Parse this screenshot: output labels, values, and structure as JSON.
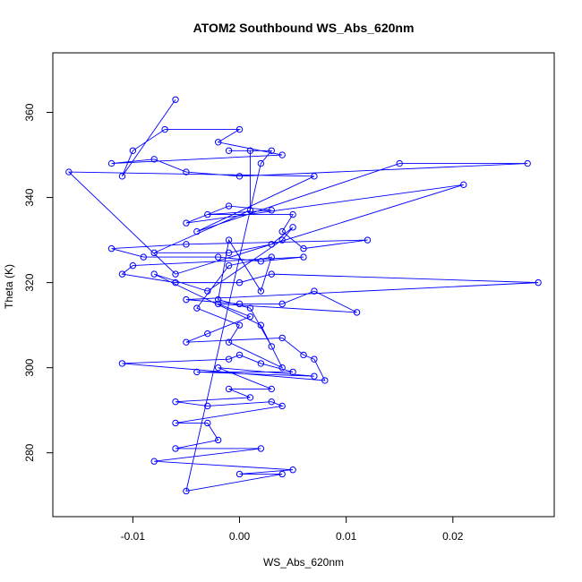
{
  "chart_data": {
    "type": "line",
    "title": "ATOM2 Southbound WS_Abs_620nm",
    "xlabel": "WS_Abs_620nm",
    "ylabel": "Theta (K)",
    "xlim": [
      -0.0175,
      0.0295
    ],
    "ylim": [
      265,
      374
    ],
    "xticks": [
      -0.01,
      0.0,
      0.01,
      0.02
    ],
    "xtick_labels": [
      "-0.01",
      "0.00",
      "0.01",
      "0.02"
    ],
    "yticks": [
      280,
      300,
      320,
      340,
      360
    ],
    "ytick_labels": [
      "280",
      "300",
      "320",
      "340",
      "360"
    ],
    "grid": false,
    "legend": "none",
    "series_color": "#0000ff",
    "marker": "open-circle",
    "points": [
      {
        "x": -0.006,
        "y": 363
      },
      {
        "x": -0.011,
        "y": 345
      },
      {
        "x": -0.01,
        "y": 351
      },
      {
        "x": -0.007,
        "y": 356
      },
      {
        "x": 0.0,
        "y": 356
      },
      {
        "x": -0.002,
        "y": 353
      },
      {
        "x": 0.004,
        "y": 350
      },
      {
        "x": -0.012,
        "y": 348
      },
      {
        "x": -0.008,
        "y": 349
      },
      {
        "x": -0.005,
        "y": 346
      },
      {
        "x": 0.0,
        "y": 345
      },
      {
        "x": 0.027,
        "y": 348
      },
      {
        "x": 0.015,
        "y": 348
      },
      {
        "x": -0.004,
        "y": 332
      },
      {
        "x": 0.007,
        "y": 345
      },
      {
        "x": -0.016,
        "y": 346
      },
      {
        "x": -0.006,
        "y": 322
      },
      {
        "x": 0.021,
        "y": 343
      },
      {
        "x": -0.005,
        "y": 334
      },
      {
        "x": -0.001,
        "y": 338
      },
      {
        "x": 0.003,
        "y": 337
      },
      {
        "x": -0.003,
        "y": 336
      },
      {
        "x": 0.005,
        "y": 336
      },
      {
        "x": 0.004,
        "y": 332
      },
      {
        "x": 0.006,
        "y": 328
      },
      {
        "x": 0.012,
        "y": 330
      },
      {
        "x": -0.005,
        "y": 329
      },
      {
        "x": -0.012,
        "y": 328
      },
      {
        "x": -0.009,
        "y": 326
      },
      {
        "x": -0.002,
        "y": 326
      },
      {
        "x": 0.002,
        "y": 325
      },
      {
        "x": 0.006,
        "y": 326
      },
      {
        "x": -0.01,
        "y": 324
      },
      {
        "x": -0.011,
        "y": 322
      },
      {
        "x": -0.006,
        "y": 320
      },
      {
        "x": 0.0,
        "y": 320
      },
      {
        "x": 0.003,
        "y": 322
      },
      {
        "x": 0.028,
        "y": 320
      },
      {
        "x": -0.005,
        "y": 316
      },
      {
        "x": 0.0,
        "y": 315
      },
      {
        "x": 0.004,
        "y": 315
      },
      {
        "x": 0.007,
        "y": 318
      },
      {
        "x": 0.011,
        "y": 313
      },
      {
        "x": -0.002,
        "y": 315
      },
      {
        "x": 0.001,
        "y": 312
      },
      {
        "x": -0.003,
        "y": 308
      },
      {
        "x": -0.005,
        "y": 306
      },
      {
        "x": 0.004,
        "y": 307
      },
      {
        "x": 0.006,
        "y": 303
      },
      {
        "x": 0.007,
        "y": 302
      },
      {
        "x": 0.008,
        "y": 297
      },
      {
        "x": -0.011,
        "y": 301
      },
      {
        "x": -0.001,
        "y": 302
      },
      {
        "x": 0.0,
        "y": 303
      },
      {
        "x": 0.002,
        "y": 301
      },
      {
        "x": 0.005,
        "y": 299
      },
      {
        "x": -0.004,
        "y": 299
      },
      {
        "x": 0.007,
        "y": 298
      },
      {
        "x": -0.002,
        "y": 300
      },
      {
        "x": 0.003,
        "y": 295
      },
      {
        "x": -0.001,
        "y": 295
      },
      {
        "x": 0.001,
        "y": 293
      },
      {
        "x": -0.006,
        "y": 292
      },
      {
        "x": -0.003,
        "y": 291
      },
      {
        "x": 0.003,
        "y": 292
      },
      {
        "x": 0.004,
        "y": 291
      },
      {
        "x": -0.006,
        "y": 287
      },
      {
        "x": -0.003,
        "y": 287
      },
      {
        "x": -0.002,
        "y": 283
      },
      {
        "x": -0.006,
        "y": 281
      },
      {
        "x": 0.002,
        "y": 281
      },
      {
        "x": -0.008,
        "y": 278
      },
      {
        "x": 0.005,
        "y": 276
      },
      {
        "x": 0.0,
        "y": 275
      },
      {
        "x": 0.004,
        "y": 275
      },
      {
        "x": -0.005,
        "y": 271
      },
      {
        "x": 0.002,
        "y": 348
      },
      {
        "x": 0.003,
        "y": 351
      },
      {
        "x": -0.001,
        "y": 351
      },
      {
        "x": 0.001,
        "y": 351
      },
      {
        "x": 0.001,
        "y": 337
      },
      {
        "x": -0.008,
        "y": 327
      },
      {
        "x": -0.001,
        "y": 327
      },
      {
        "x": 0.003,
        "y": 329
      },
      {
        "x": 0.005,
        "y": 333
      },
      {
        "x": 0.004,
        "y": 330
      },
      {
        "x": -0.003,
        "y": 318
      },
      {
        "x": -0.008,
        "y": 322
      },
      {
        "x": 0.002,
        "y": 310
      },
      {
        "x": 0.004,
        "y": 300
      },
      {
        "x": -0.001,
        "y": 306
      },
      {
        "x": 0.0,
        "y": 310
      },
      {
        "x": -0.004,
        "y": 314
      },
      {
        "x": -0.001,
        "y": 324
      },
      {
        "x": 0.003,
        "y": 326
      },
      {
        "x": 0.002,
        "y": 318
      },
      {
        "x": -0.001,
        "y": 330
      },
      {
        "x": -0.002,
        "y": 316
      },
      {
        "x": 0.001,
        "y": 314
      },
      {
        "x": 0.003,
        "y": 305
      }
    ]
  }
}
